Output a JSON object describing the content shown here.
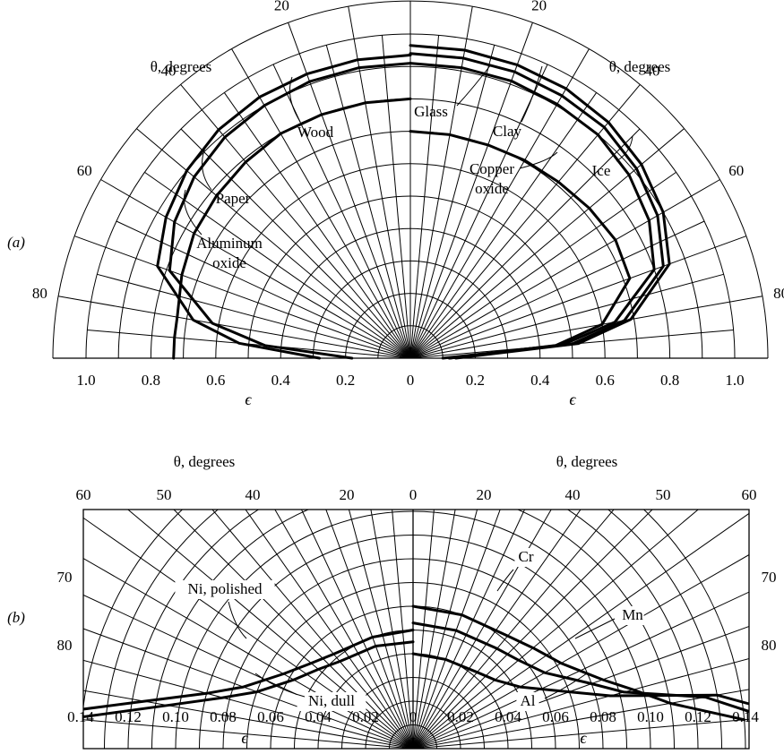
{
  "chart_data": [
    {
      "type": "polar",
      "panel_label": "(a)",
      "radial_label": "ϵ",
      "angle_label": "θ, degrees",
      "radial_range": [
        0,
        1.0
      ],
      "radial_ticks": [
        "1.0",
        "0.8",
        "0.6",
        "0.4",
        "0.2",
        "0",
        "0.2",
        "0.4",
        "0.6",
        "0.8",
        "1.0"
      ],
      "angle_ticks": [
        "0",
        "20",
        "40",
        "60",
        "80"
      ],
      "angle_tick_values": [
        0,
        20,
        40,
        60,
        80
      ],
      "series": [
        {
          "name": "Wood",
          "side": "left",
          "theta": [
            0,
            10,
            20,
            30,
            40,
            50,
            60,
            70,
            80,
            85,
            90
          ],
          "epsilon": [
            0.935,
            0.935,
            0.933,
            0.93,
            0.92,
            0.9,
            0.87,
            0.83,
            0.68,
            0.53,
            0.28
          ]
        },
        {
          "name": "Paper",
          "side": "left",
          "theta": [
            0,
            10,
            20,
            30,
            40,
            50,
            60,
            70,
            80,
            85,
            90
          ],
          "epsilon": [
            0.91,
            0.91,
            0.908,
            0.9,
            0.89,
            0.87,
            0.84,
            0.79,
            0.62,
            0.45,
            0.18
          ]
        },
        {
          "name": "Aluminum oxide",
          "side": "left",
          "theta": [
            0,
            10,
            20,
            30,
            40,
            50,
            60,
            70,
            80,
            85,
            90
          ],
          "epsilon": [
            0.8,
            0.8,
            0.8,
            0.8,
            0.79,
            0.78,
            0.77,
            0.75,
            0.73,
            0.73,
            0.73
          ]
        },
        {
          "name": "Glass",
          "side": "right",
          "theta": [
            0,
            10,
            20,
            30,
            40,
            50,
            60,
            70,
            80,
            85,
            90
          ],
          "epsilon": [
            0.94,
            0.94,
            0.94,
            0.935,
            0.93,
            0.91,
            0.88,
            0.83,
            0.67,
            0.5,
            0.12
          ]
        },
        {
          "name": "Clay",
          "side": "right",
          "theta": [
            0,
            10,
            20,
            30,
            40,
            50,
            60,
            70,
            80,
            85,
            90
          ],
          "epsilon": [
            0.91,
            0.91,
            0.91,
            0.905,
            0.9,
            0.88,
            0.85,
            0.8,
            0.64,
            0.47,
            0.1
          ]
        },
        {
          "name": "Ice",
          "side": "right",
          "theta": [
            0,
            10,
            20,
            30,
            40,
            50,
            60,
            70,
            80,
            85,
            90
          ],
          "epsilon": [
            0.965,
            0.965,
            0.963,
            0.96,
            0.95,
            0.93,
            0.9,
            0.85,
            0.69,
            0.52,
            0.14
          ]
        },
        {
          "name": "Copper oxide",
          "side": "right",
          "theta": [
            0,
            10,
            20,
            30,
            40,
            50,
            60,
            70,
            80,
            85,
            90
          ],
          "epsilon": [
            0.7,
            0.7,
            0.7,
            0.705,
            0.71,
            0.72,
            0.73,
            0.72,
            0.6,
            0.45,
            0.12
          ]
        }
      ],
      "annotations": [
        "Wood",
        "Paper",
        "Aluminum oxide",
        "Glass",
        "Clay",
        "Copper oxide",
        "Ice"
      ]
    },
    {
      "type": "polar",
      "panel_label": "(b)",
      "radial_label": "ϵ",
      "angle_label": "θ, degrees",
      "radial_range": [
        0,
        0.14
      ],
      "radial_ticks": [
        "0.14",
        "0.12",
        "0.10",
        "0.08",
        "0.06",
        "0.04",
        "0.02",
        "0",
        "0.02",
        "0.04",
        "0.06",
        "0.08",
        "0.10",
        "0.12",
        "0.14"
      ],
      "angle_ticks": [
        "60",
        "50",
        "40",
        "20",
        "0",
        "20",
        "40",
        "50",
        "60",
        "70",
        "80",
        "70",
        "80"
      ],
      "series": [
        {
          "name": "Ni, polished",
          "side": "left",
          "theta": [
            0,
            20,
            40,
            50,
            60,
            70,
            75,
            80,
            85
          ],
          "epsilon": [
            0.045,
            0.046,
            0.048,
            0.052,
            0.058,
            0.07,
            0.083,
            0.105,
            0.145
          ]
        },
        {
          "name": "Ni, dull",
          "side": "left",
          "theta": [
            0,
            20,
            40,
            50,
            60,
            70,
            75,
            80,
            85
          ],
          "epsilon": [
            0.05,
            0.05,
            0.052,
            0.056,
            0.063,
            0.076,
            0.09,
            0.115,
            0.16
          ]
        },
        {
          "name": "Cr",
          "side": "right",
          "theta": [
            0,
            20,
            40,
            50,
            60,
            70,
            75,
            80,
            85
          ],
          "epsilon": [
            0.06,
            0.06,
            0.062,
            0.066,
            0.072,
            0.085,
            0.096,
            0.11,
            0.14
          ]
        },
        {
          "name": "Mn",
          "side": "right",
          "theta": [
            0,
            20,
            40,
            50,
            60,
            70,
            75,
            80,
            85
          ],
          "epsilon": [
            0.053,
            0.053,
            0.055,
            0.058,
            0.064,
            0.08,
            0.092,
            0.125,
            0.15
          ]
        },
        {
          "name": "Al",
          "side": "right",
          "theta": [
            0,
            20,
            40,
            50,
            60,
            70,
            75,
            80,
            85
          ],
          "epsilon": [
            0.04,
            0.04,
            0.042,
            0.045,
            0.052,
            0.07,
            0.086,
            0.13,
            0.16
          ]
        }
      ],
      "annotations": [
        "Cr",
        "Ni, polished",
        "Mn",
        "Ni, dull",
        "Al"
      ]
    }
  ]
}
